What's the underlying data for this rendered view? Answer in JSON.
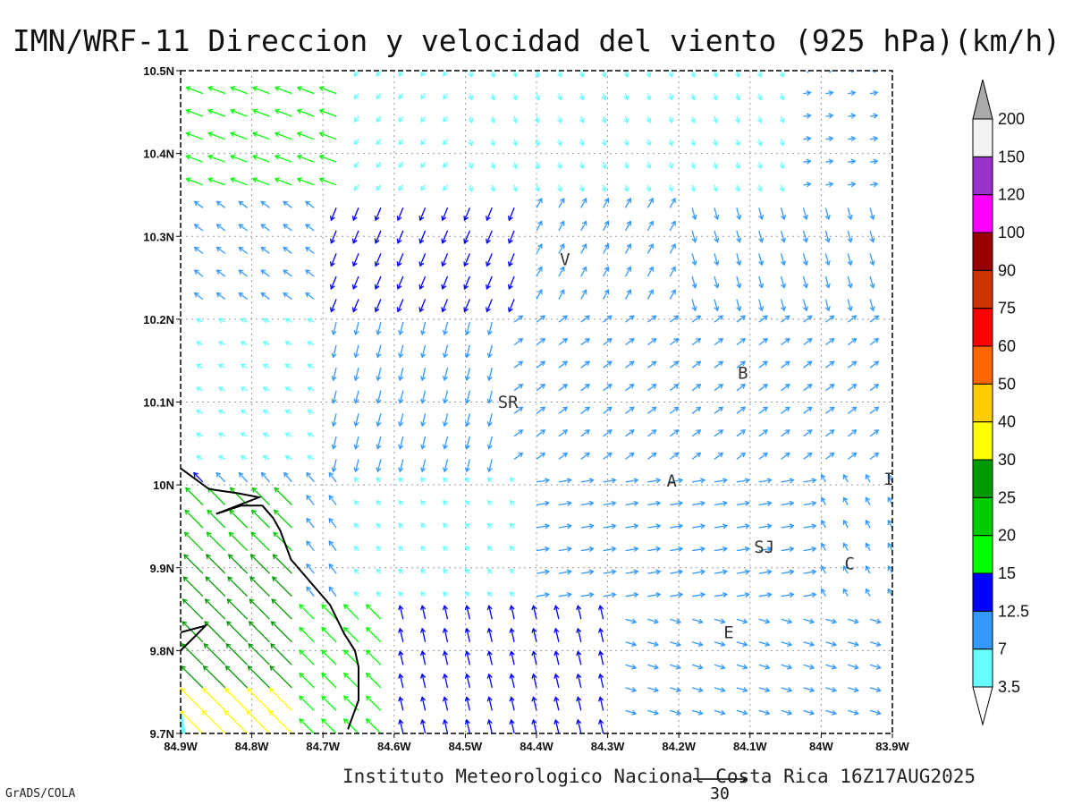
{
  "title": "IMN/WRF-11 Direccion y velocidad del viento (925 hPa)(km/h)",
  "footer": "Instituto Meteorologico Nacional Costa Rica 16Z17AUG2025",
  "software_label": "GrADS/COLA",
  "map": {
    "lat_ticks": [
      "10.5N",
      "10.4N",
      "10.3N",
      "10.2N",
      "10.1N",
      "10N",
      "9.9N",
      "9.8N",
      "9.7N"
    ],
    "lon_ticks": [
      "84.9W",
      "84.8W",
      "84.7W",
      "84.6W",
      "84.5W",
      "84.4W",
      "84.3W",
      "84.2W",
      "84.1W",
      "84W",
      "83.9W"
    ],
    "lat_range": [
      9.7,
      10.5
    ],
    "lon_range": [
      -84.9,
      -83.9
    ],
    "grid": "dotted",
    "city_labels": [
      {
        "name": "V",
        "lon": -84.36,
        "lat": 10.265
      },
      {
        "name": "SR",
        "lon": -84.44,
        "lat": 10.093
      },
      {
        "name": "B",
        "lon": -84.11,
        "lat": 10.128
      },
      {
        "name": "A",
        "lon": -84.21,
        "lat": 9.998
      },
      {
        "name": "I",
        "lon": -83.905,
        "lat": 10.0
      },
      {
        "name": "SJ",
        "lon": -84.08,
        "lat": 9.918
      },
      {
        "name": "C",
        "lon": -83.96,
        "lat": 9.898
      },
      {
        "name": "E",
        "lon": -84.13,
        "lat": 9.815
      }
    ],
    "reference_vector": {
      "label": "30",
      "speed": 30
    }
  },
  "colorbar": {
    "levels": [
      "3.5",
      "7",
      "12.5",
      "15",
      "20",
      "25",
      "30",
      "40",
      "50",
      "60",
      "75",
      "90",
      "100",
      "120",
      "150",
      "200"
    ],
    "colors": [
      "#66ffff",
      "#3399ff",
      "#0000ff",
      "#00ff00",
      "#00cc00",
      "#009900",
      "#ffff00",
      "#ffcc00",
      "#ff6600",
      "#ff0000",
      "#cc3300",
      "#990000",
      "#ff00ff",
      "#9933cc",
      "#f2f2f2",
      "#aaaaaa"
    ]
  }
}
